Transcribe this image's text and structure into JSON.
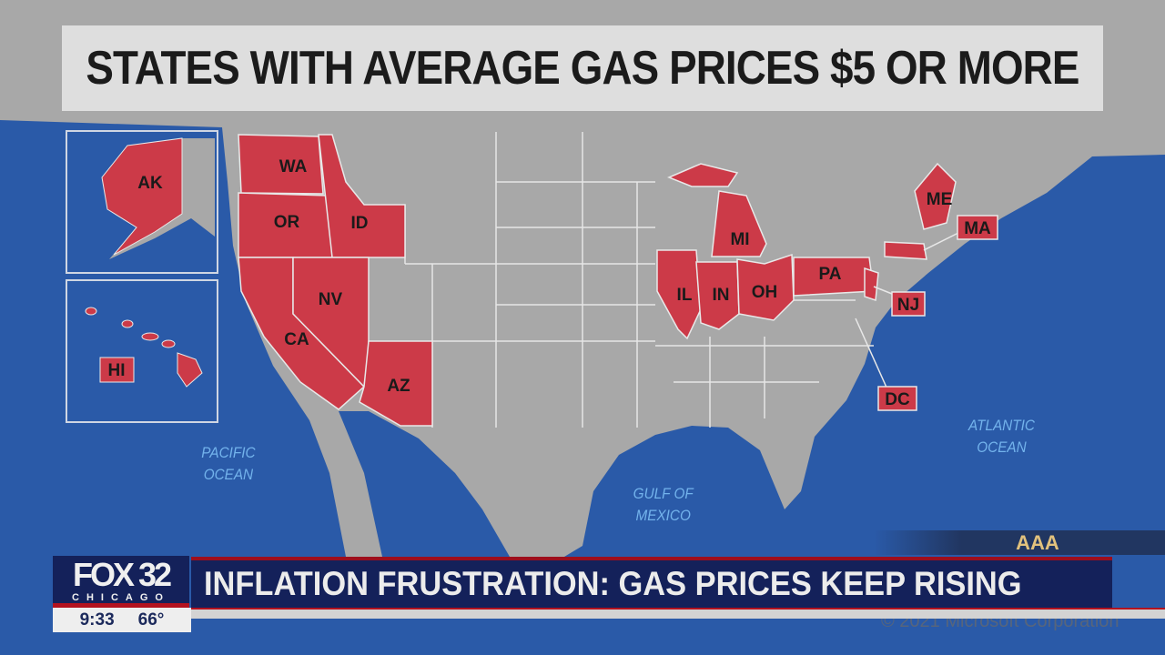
{
  "title": "STATES WITH AVERAGE GAS PRICES $5 OR MORE",
  "colors": {
    "highlight": "#cc3a48",
    "land": "#a8a8a8",
    "ocean": "#2a5aa8",
    "banner_navy": "#14215a",
    "accent_red": "#b3121f"
  },
  "states": [
    "WA",
    "OR",
    "ID",
    "CA",
    "NV",
    "AZ",
    "IL",
    "IN",
    "OH",
    "MI",
    "PA",
    "NJ",
    "ME",
    "MA",
    "DC",
    "AK",
    "HI"
  ],
  "oceans": {
    "pacific": [
      "PACIFIC",
      "OCEAN"
    ],
    "gulf": [
      "GULF OF",
      "MEXICO"
    ],
    "atlantic": [
      "ATLANTIC",
      "OCEAN"
    ]
  },
  "source": "AAA",
  "copyright": "© 2021 Microsoft Corporation",
  "lower_third": {
    "logo_main": "FOX 32",
    "logo_sub": "CHICAGO",
    "time": "9:33",
    "temperature": "66°",
    "headline": "INFLATION FRUSTRATION: GAS PRICES KEEP RISING"
  }
}
